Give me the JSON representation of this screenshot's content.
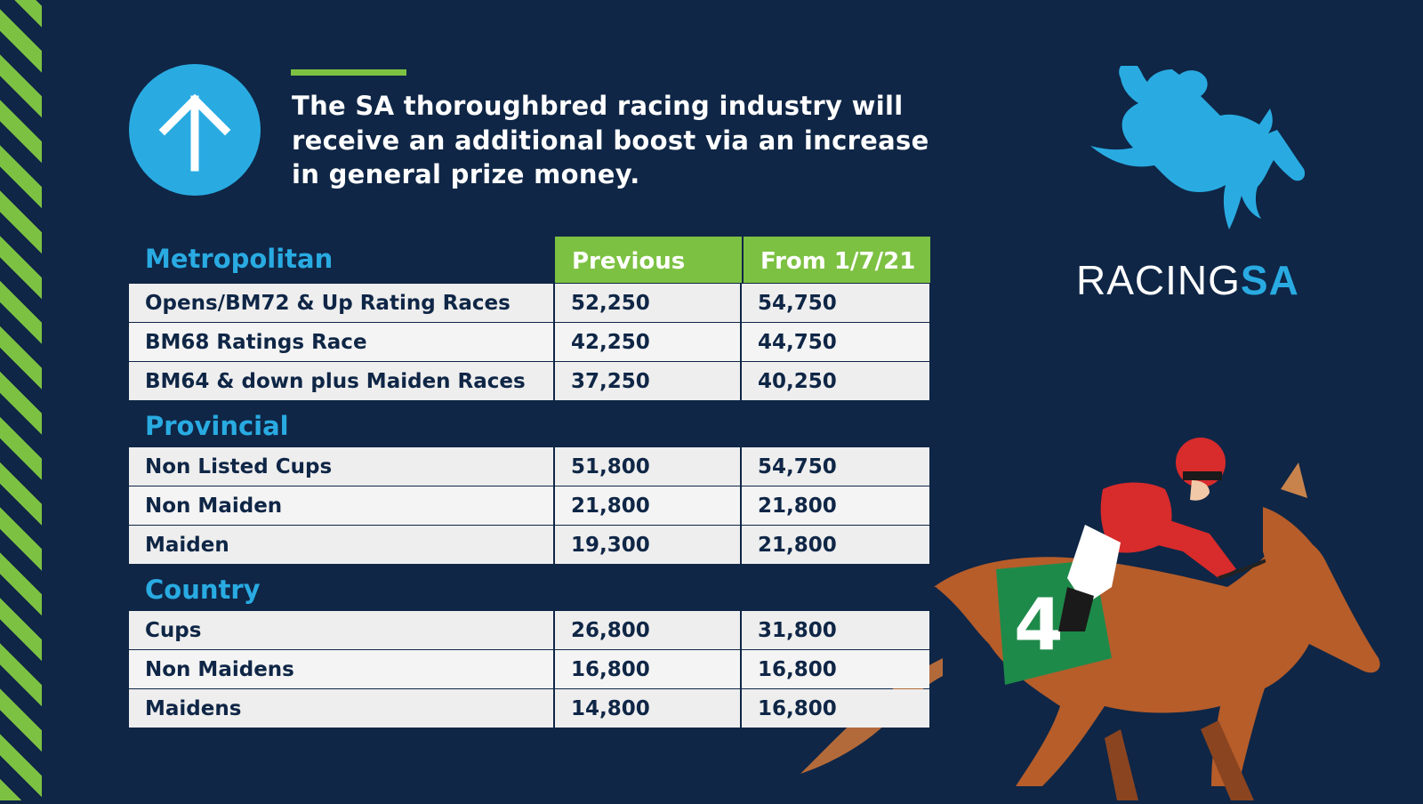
{
  "headline": "The SA thoroughbred racing industry will receive an additional boost via an increase in general prize money.",
  "logo": {
    "part1": "RACING",
    "part2": "SA"
  },
  "colors": {
    "background": "#0f2646",
    "green": "#7dc142",
    "blue": "#29abe2"
  },
  "icons": {
    "arrow": "up-arrow-icon"
  },
  "table": {
    "headers": {
      "previous": "Previous",
      "new": "From 1/7/21"
    },
    "sections": [
      {
        "title": "Metropolitan",
        "rows": [
          {
            "label": "Opens/BM72 & Up Rating Races",
            "previous": "52,250",
            "new": "54,750"
          },
          {
            "label": "BM68 Ratings Race",
            "previous": "42,250",
            "new": "44,750"
          },
          {
            "label": "BM64 & down plus Maiden Races",
            "previous": "37,250",
            "new": "40,250"
          }
        ]
      },
      {
        "title": "Provincial",
        "rows": [
          {
            "label": "Non Listed Cups",
            "previous": "51,800",
            "new": "54,750"
          },
          {
            "label": "Non Maiden",
            "previous": "21,800",
            "new": "21,800"
          },
          {
            "label": "Maiden",
            "previous": "19,300",
            "new": "21,800"
          }
        ]
      },
      {
        "title": "Country",
        "rows": [
          {
            "label": "Cups",
            "previous": "26,800",
            "new": "31,800"
          },
          {
            "label": "Non Maidens",
            "previous": "16,800",
            "new": "16,800"
          },
          {
            "label": "Maidens",
            "previous": "14,800",
            "new": "16,800"
          }
        ]
      }
    ]
  }
}
